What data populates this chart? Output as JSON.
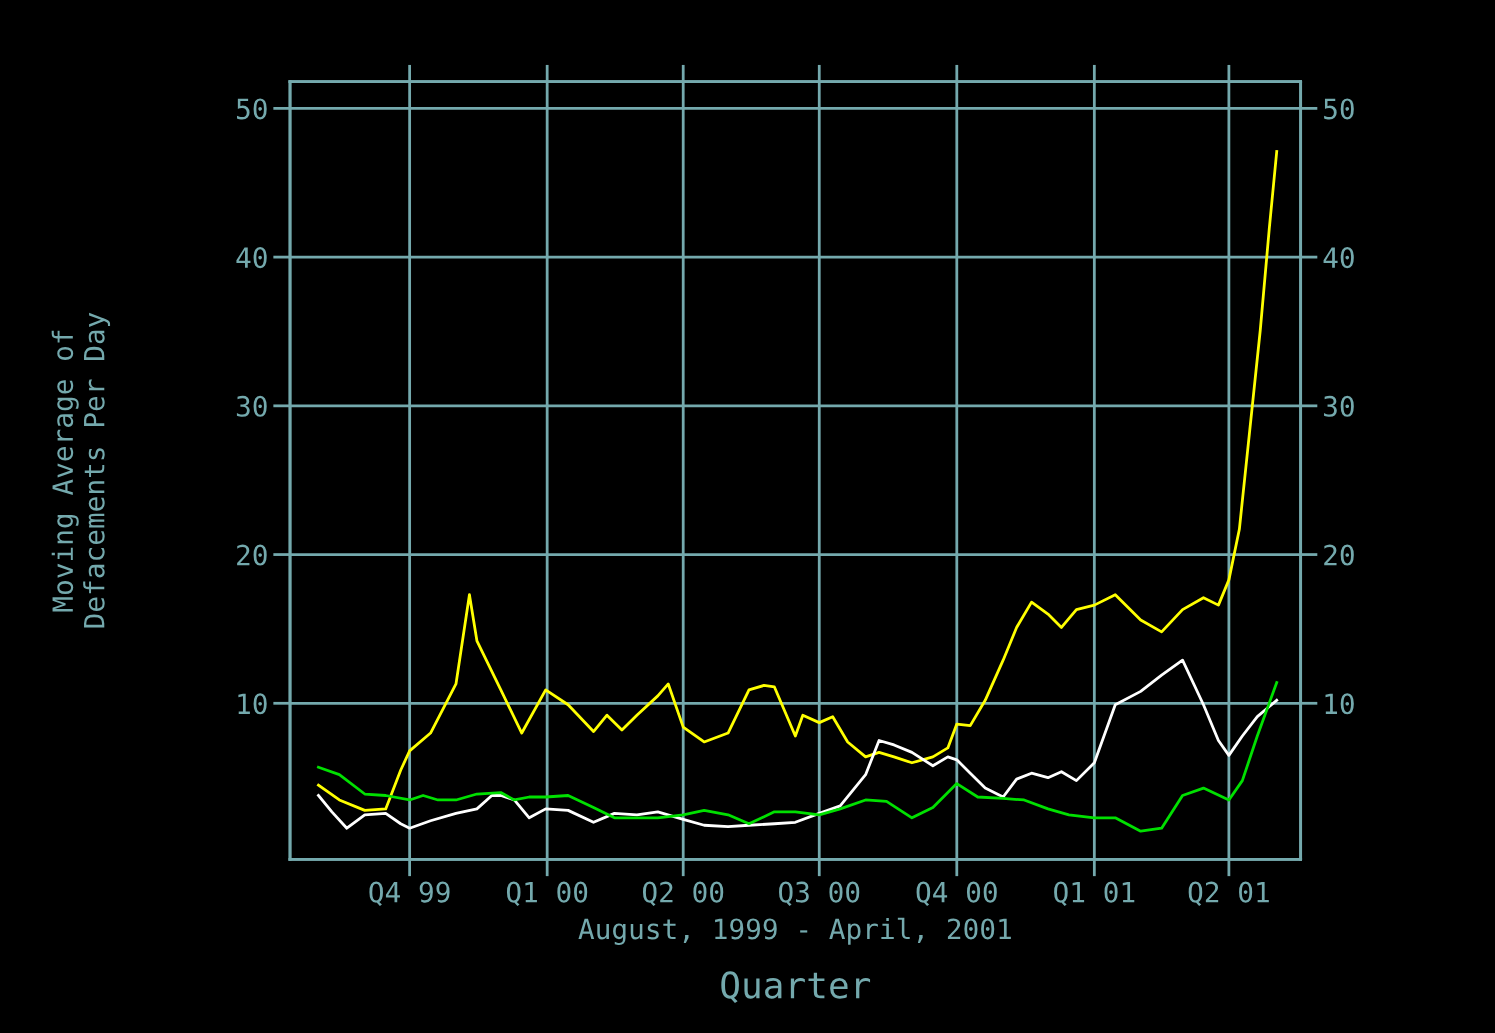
{
  "chart_data": {
    "type": "line",
    "xlabel": "Quarter",
    "ylabel": "Moving Average of\nDefacements Per Day",
    "annotations": [
      "August, 1999 - April, 2001"
    ],
    "x": [
      "1999-08-01",
      "1999-08-15",
      "1999-09-01",
      "1999-09-15",
      "1999-09-25",
      "1999-10-01",
      "1999-10-15",
      "1999-11-01",
      "1999-11-10",
      "1999-11-15",
      "1999-12-01",
      "1999-12-15",
      "1999-12-31",
      "2000-01-15",
      "2000-02-01",
      "2000-02-10",
      "2000-02-20",
      "2000-03-01",
      "2000-03-15",
      "2000-03-22",
      "2000-04-01",
      "2000-04-15",
      "2000-05-01",
      "2000-05-15",
      "2000-05-25",
      "2000-06-01",
      "2000-06-15",
      "2000-06-20",
      "2000-07-01",
      "2000-07-10",
      "2000-07-20",
      "2000-08-01",
      "2000-08-10",
      "2000-08-20",
      "2000-09-01",
      "2000-09-15",
      "2000-09-25",
      "2000-10-01",
      "2000-10-10",
      "2000-10-20",
      "2000-11-01",
      "2000-11-10",
      "2000-11-20",
      "2000-12-01",
      "2000-12-10",
      "2000-12-20",
      "2001-01-01",
      "2001-01-15",
      "2001-02-01",
      "2001-02-15",
      "2001-03-01",
      "2001-03-15",
      "2001-03-25",
      "2001-04-01",
      "2001-04-08",
      "2001-04-15",
      "2001-04-22",
      "2001-04-28",
      "2001-05-03"
    ],
    "series": [
      {
        "color": "#ffff00",
        "values": [
          4.5,
          3.5,
          2.8,
          2.9,
          5.5,
          6.8,
          8.0,
          11.3,
          17.3,
          14.2,
          10.9,
          8.0,
          10.9,
          9.9,
          8.1,
          9.2,
          8.2,
          9.2,
          10.5,
          11.3,
          8.4,
          7.4,
          8.0,
          10.9,
          11.2,
          11.1,
          7.8,
          9.2,
          8.7,
          9.1,
          7.4,
          6.4,
          6.7,
          6.4,
          6.0,
          6.4,
          7.0,
          8.6,
          8.5,
          10.2,
          12.9,
          15.1,
          16.8,
          16.0,
          15.1,
          16.3,
          16.6,
          17.3,
          15.6,
          14.8,
          16.3,
          17.1,
          16.6,
          18.3,
          21.7,
          28.4,
          35.1,
          41.9,
          47.1
        ]
      },
      {
        "color": "#ffffff",
        "x": [
          "1999-08-01",
          "1999-08-10",
          "1999-08-20",
          "1999-09-01",
          "1999-09-15",
          "1999-09-25",
          "1999-10-01",
          "1999-10-15",
          "1999-11-01",
          "1999-11-15",
          "1999-11-25",
          "1999-12-01",
          "1999-12-10",
          "1999-12-20",
          "1999-12-31",
          "2000-01-15",
          "2000-02-01",
          "2000-02-15",
          "2000-03-01",
          "2000-03-15",
          "2000-04-01",
          "2000-04-15",
          "2000-05-01",
          "2000-05-15",
          "2000-06-01",
          "2000-06-15",
          "2000-07-01",
          "2000-07-15",
          "2000-08-01",
          "2000-08-10",
          "2000-08-20",
          "2000-09-01",
          "2000-09-15",
          "2000-09-25",
          "2000-10-01",
          "2000-10-10",
          "2000-10-20",
          "2000-11-01",
          "2000-11-10",
          "2000-11-20",
          "2000-12-01",
          "2000-12-10",
          "2000-12-20",
          "2001-01-01",
          "2001-01-15",
          "2001-02-01",
          "2001-02-15",
          "2001-03-01",
          "2001-03-15",
          "2001-03-25",
          "2001-04-01",
          "2001-04-10",
          "2001-04-20",
          "2001-05-03"
        ],
        "values": [
          3.8,
          2.7,
          1.6,
          2.5,
          2.6,
          1.9,
          1.6,
          2.1,
          2.6,
          2.9,
          3.8,
          3.8,
          3.5,
          2.3,
          2.9,
          2.8,
          2.0,
          2.6,
          2.5,
          2.7,
          2.2,
          1.8,
          1.7,
          1.8,
          1.9,
          2.0,
          2.6,
          3.1,
          5.2,
          7.5,
          7.2,
          6.7,
          5.8,
          6.4,
          6.2,
          5.3,
          4.3,
          3.7,
          4.9,
          5.3,
          5.0,
          5.4,
          4.8,
          6.0,
          9.9,
          10.8,
          11.9,
          12.9,
          9.9,
          7.5,
          6.5,
          7.8,
          9.1,
          10.2
        ]
      },
      {
        "color": "#00e000",
        "x": [
          "1999-08-01",
          "1999-08-15",
          "1999-09-01",
          "1999-09-15",
          "1999-10-01",
          "1999-10-10",
          "1999-10-20",
          "1999-11-01",
          "1999-11-15",
          "1999-12-01",
          "1999-12-10",
          "1999-12-20",
          "1999-12-31",
          "2000-01-15",
          "2000-02-01",
          "2000-02-15",
          "2000-03-01",
          "2000-03-15",
          "2000-04-01",
          "2000-04-15",
          "2000-05-01",
          "2000-05-15",
          "2000-06-01",
          "2000-06-15",
          "2000-07-01",
          "2000-07-15",
          "2000-08-01",
          "2000-08-15",
          "2000-09-01",
          "2000-09-15",
          "2000-10-01",
          "2000-10-15",
          "2000-11-01",
          "2000-11-15",
          "2000-12-01",
          "2000-12-15",
          "2001-01-01",
          "2001-01-15",
          "2001-02-01",
          "2001-02-15",
          "2001-03-01",
          "2001-03-15",
          "2001-04-01",
          "2001-04-10",
          "2001-04-20",
          "2001-05-03"
        ],
        "values": [
          5.7,
          5.2,
          3.9,
          3.8,
          3.5,
          3.8,
          3.5,
          3.5,
          3.9,
          4.0,
          3.5,
          3.7,
          3.7,
          3.8,
          3.0,
          2.3,
          2.3,
          2.3,
          2.5,
          2.8,
          2.5,
          1.9,
          2.7,
          2.7,
          2.5,
          2.9,
          3.5,
          3.4,
          2.3,
          3.0,
          4.6,
          3.7,
          3.6,
          3.5,
          2.9,
          2.5,
          2.3,
          2.3,
          1.4,
          1.6,
          3.8,
          4.3,
          3.5,
          4.8,
          7.8,
          11.4
        ]
      }
    ],
    "xlim": [
      "1999-07-13",
      "2001-05-19"
    ],
    "xticks": [
      {
        "value": "1999-10-01",
        "label": "Q4 99"
      },
      {
        "value": "2000-01-01",
        "label": "Q1 00"
      },
      {
        "value": "2000-04-01",
        "label": "Q2 00"
      },
      {
        "value": "2000-07-01",
        "label": "Q3 00"
      },
      {
        "value": "2000-10-01",
        "label": "Q4 00"
      },
      {
        "value": "2001-01-01",
        "label": "Q1 01"
      },
      {
        "value": "2001-04-01",
        "label": "Q2 01"
      }
    ],
    "ylim": [
      -0.5,
      51.8
    ],
    "yticks": [
      10,
      20,
      30,
      40,
      50
    ],
    "y2lim": [
      -0.5,
      51.8
    ],
    "y2ticks": [
      10,
      20,
      30,
      40,
      50
    ],
    "grid": true,
    "marker": "none",
    "line_style": "solid"
  }
}
